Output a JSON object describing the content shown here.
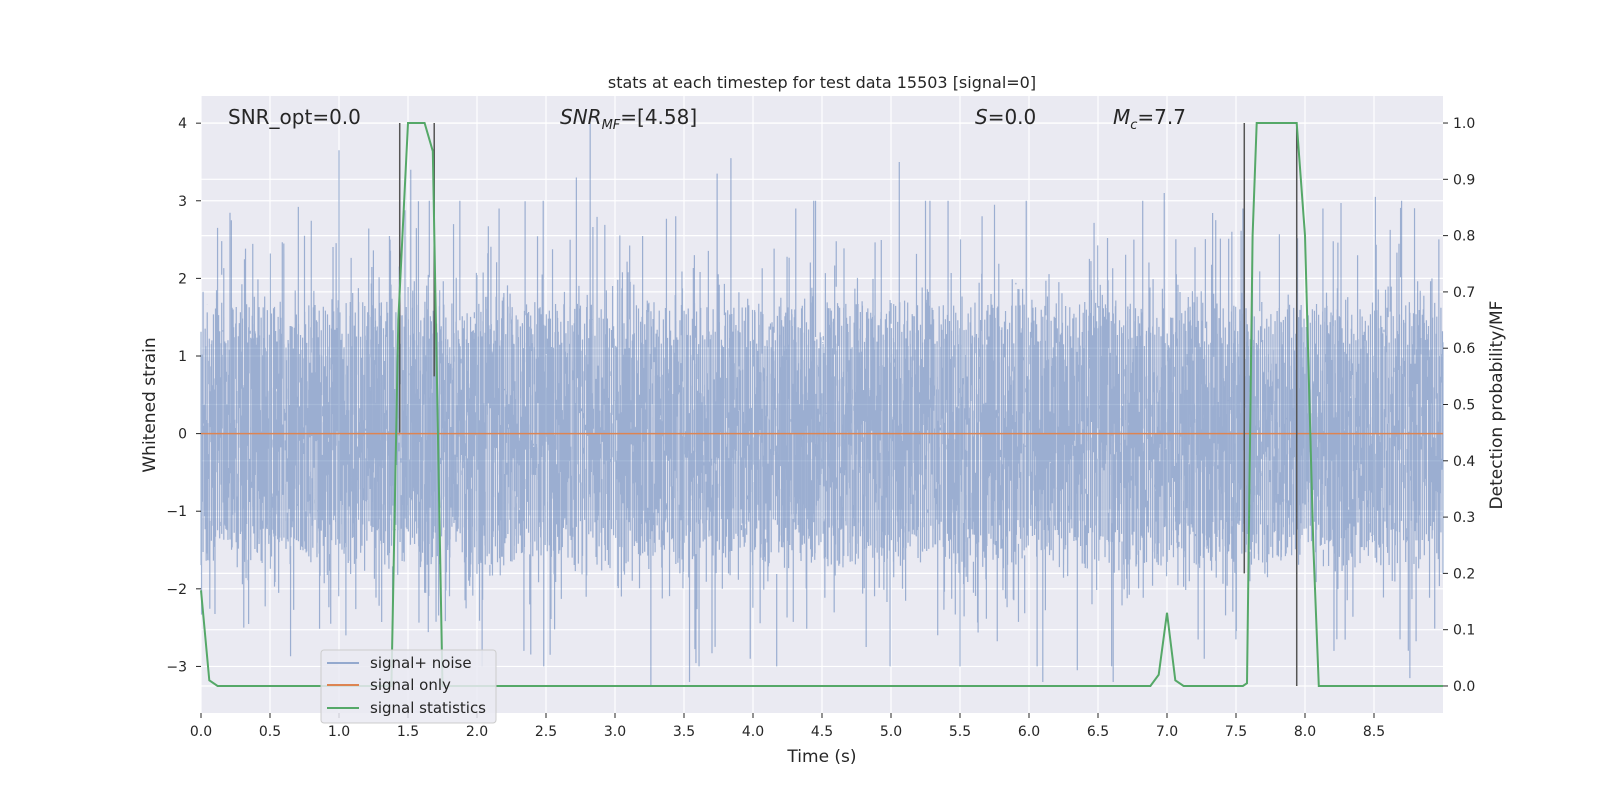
{
  "chart_data": {
    "type": "line",
    "title": "stats at each timestep for test data 15503 [signal=0]",
    "xlabel": "Time (s)",
    "ylabel_left": "Whitened strain",
    "ylabel_right": "Detection probability/MF",
    "xlim": [
      0.0,
      9.0
    ],
    "ylim_left": [
      -3.6,
      4.35
    ],
    "ylim_right": [
      -0.048,
      1.048
    ],
    "xticks": [
      "0.0",
      "0.5",
      "1.0",
      "1.5",
      "2.0",
      "2.5",
      "3.0",
      "3.5",
      "4.0",
      "4.5",
      "5.0",
      "5.5",
      "6.0",
      "6.5",
      "7.0",
      "7.5",
      "8.0",
      "8.5"
    ],
    "yticks_left": [
      "−3",
      "−2",
      "−1",
      "0",
      "1",
      "2",
      "3",
      "4"
    ],
    "yticks_right": [
      "0.0",
      "0.1",
      "0.2",
      "0.3",
      "0.4",
      "0.5",
      "0.6",
      "0.7",
      "0.8",
      "0.9",
      "1.0"
    ],
    "grid": true,
    "legend_position": "lower-left",
    "annotations": {
      "snr_opt": "SNR_opt=0.0",
      "snr_mf_base": "SNR",
      "snr_mf_sub": "MF",
      "snr_mf_rest": "=[4.58]",
      "s_base": "S",
      "s_rest": "=0.0",
      "mc_base": "M",
      "mc_sub": "c",
      "mc_rest": "=7.7"
    },
    "series": [
      {
        "name": "signal+ noise",
        "color": "#4c72b0",
        "description_style": "dense noise, approx amplitude range -3.3 to 4.0",
        "noise_sigma": 1.0
      },
      {
        "name": "signal only",
        "color": "#dd8452",
        "constant_value": 0.0
      },
      {
        "name": "signal statistics",
        "color": "#55a868",
        "axis": "right",
        "x": [
          0.0,
          0.06,
          0.12,
          1.38,
          1.43,
          1.5,
          1.55,
          1.62,
          1.68,
          1.75,
          6.88,
          6.94,
          7.0,
          7.06,
          7.12,
          7.55,
          7.58,
          7.62,
          7.65,
          7.7,
          7.94,
          8.0,
          8.06,
          8.1,
          9.0
        ],
        "y": [
          0.17,
          0.01,
          0.0,
          0.0,
          0.65,
          1.0,
          1.0,
          1.0,
          0.95,
          0.0,
          0.0,
          0.02,
          0.13,
          0.01,
          0.0,
          0.0,
          0.005,
          0.8,
          1.0,
          1.0,
          1.0,
          0.8,
          0.25,
          0.0,
          0.0
        ]
      }
    ],
    "vertical_lines": [
      {
        "x": 1.44,
        "from": 1.0,
        "to": 0.45
      },
      {
        "x": 1.69,
        "from": 1.0,
        "to": 0.55
      },
      {
        "x": 7.56,
        "from": 1.0,
        "to": 0.2
      },
      {
        "x": 7.94,
        "from": 1.0,
        "to": 0.0
      }
    ],
    "spikes": [
      {
        "x": 0.12,
        "v": 2.65
      },
      {
        "x": 0.22,
        "v": 2.75
      },
      {
        "x": 0.31,
        "v": -2.5
      },
      {
        "x": 0.6,
        "v": 2.45
      },
      {
        "x": 0.75,
        "v": 2.55
      },
      {
        "x": 0.94,
        "v": -2.45
      },
      {
        "x": 1.0,
        "v": 3.65
      },
      {
        "x": 1.05,
        "v": -2.6
      },
      {
        "x": 1.37,
        "v": 2.5
      },
      {
        "x": 1.52,
        "v": 3.4
      },
      {
        "x": 1.83,
        "v": 2.7
      },
      {
        "x": 2.16,
        "v": 2.9
      },
      {
        "x": 2.34,
        "v": -2.8
      },
      {
        "x": 2.53,
        "v": -2.85
      },
      {
        "x": 2.72,
        "v": 3.3
      },
      {
        "x": 2.82,
        "v": 4.0
      },
      {
        "x": 3.26,
        "v": -3.25
      },
      {
        "x": 3.44,
        "v": 2.8
      },
      {
        "x": 3.54,
        "v": -3.2
      },
      {
        "x": 3.74,
        "v": 3.35
      },
      {
        "x": 3.84,
        "v": 3.55
      },
      {
        "x": 3.98,
        "v": -2.9
      },
      {
        "x": 4.31,
        "v": 2.9
      },
      {
        "x": 4.44,
        "v": 3.0
      },
      {
        "x": 4.82,
        "v": -2.75
      },
      {
        "x": 5.06,
        "v": 3.5
      },
      {
        "x": 5.25,
        "v": 3.0
      },
      {
        "x": 5.5,
        "v": -3.0
      },
      {
        "x": 5.66,
        "v": 2.8
      },
      {
        "x": 5.75,
        "v": 2.95
      },
      {
        "x": 6.1,
        "v": -3.2
      },
      {
        "x": 6.35,
        "v": -3.05
      },
      {
        "x": 6.61,
        "v": -3.2
      },
      {
        "x": 6.76,
        "v": 2.5
      },
      {
        "x": 6.98,
        "v": 3.1
      },
      {
        "x": 7.27,
        "v": -2.9
      },
      {
        "x": 7.47,
        "v": 2.6
      },
      {
        "x": 7.55,
        "v": 2.9
      },
      {
        "x": 7.94,
        "v": 3.6
      },
      {
        "x": 8.13,
        "v": 2.9
      },
      {
        "x": 8.21,
        "v": -2.8
      },
      {
        "x": 8.51,
        "v": 3.05
      },
      {
        "x": 8.76,
        "v": -3.15
      },
      {
        "x": 8.92,
        "v": 2.0
      }
    ]
  }
}
